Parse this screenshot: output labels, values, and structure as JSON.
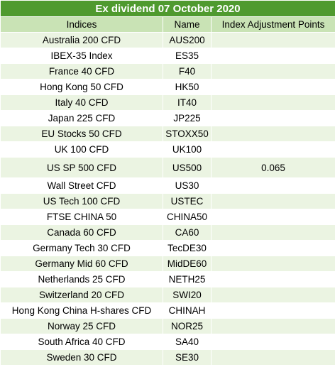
{
  "title": "Ex dividend 07 October 2020",
  "columns": [
    "Indices",
    "Name",
    "Index Adjustment Points"
  ],
  "rows": [
    {
      "index": "Australia 200 CFD",
      "name": "AUS200",
      "points": ""
    },
    {
      "index": "IBEX-35 Index",
      "name": "ES35",
      "points": ""
    },
    {
      "index": "France 40 CFD",
      "name": "F40",
      "points": ""
    },
    {
      "index": "Hong Kong 50 CFD",
      "name": "HK50",
      "points": ""
    },
    {
      "index": "Italy 40 CFD",
      "name": "IT40",
      "points": ""
    },
    {
      "index": "Japan 225 CFD",
      "name": "JP225",
      "points": ""
    },
    {
      "index": "EU Stocks 50 CFD",
      "name": "STOXX50",
      "points": ""
    },
    {
      "index": "UK 100 CFD",
      "name": "UK100",
      "points": ""
    },
    {
      "index": "US SP 500 CFD",
      "name": "US500",
      "points": "0.065"
    },
    {
      "index": "Wall Street CFD",
      "name": "US30",
      "points": ""
    },
    {
      "index": "US Tech 100 CFD",
      "name": "USTEC",
      "points": ""
    },
    {
      "index": "FTSE CHINA 50",
      "name": "CHINA50",
      "points": ""
    },
    {
      "index": "Canada 60 CFD",
      "name": "CA60",
      "points": ""
    },
    {
      "index": "Germany Tech 30 CFD",
      "name": "TecDE30",
      "points": ""
    },
    {
      "index": "Germany Mid 60 CFD",
      "name": "MidDE60",
      "points": ""
    },
    {
      "index": "Netherlands 25 CFD",
      "name": "NETH25",
      "points": ""
    },
    {
      "index": "Switzerland 20 CFD",
      "name": "SWI20",
      "points": ""
    },
    {
      "index": "Hong Kong China H-shares CFD",
      "name": "CHINAH",
      "points": ""
    },
    {
      "index": "Norway 25 CFD",
      "name": "NOR25",
      "points": ""
    },
    {
      "index": "South Africa 40 CFD",
      "name": "SA40",
      "points": ""
    },
    {
      "index": "Sweden 30 CFD",
      "name": "SE30",
      "points": ""
    }
  ]
}
